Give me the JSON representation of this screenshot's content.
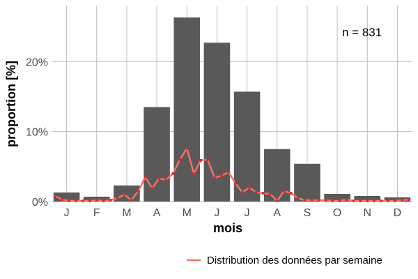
{
  "chart_data": {
    "type": "bar",
    "title": "",
    "xlabel": "mois",
    "ylabel": "proportion [%]",
    "annotation": "n = 831",
    "categories": [
      "J",
      "F",
      "M",
      "A",
      "M",
      "J",
      "J",
      "A",
      "S",
      "O",
      "N",
      "D"
    ],
    "values": [
      1.3,
      0.7,
      2.3,
      13.5,
      26.3,
      22.7,
      15.7,
      7.5,
      5.4,
      1.1,
      0.8,
      0.6
    ],
    "ylim": [
      0,
      28
    ],
    "yticks": [
      0,
      10,
      20
    ],
    "ytick_labels": [
      "0%",
      "10%",
      "20%"
    ],
    "grid": true,
    "bar_color": "#595959",
    "grid_color": "#bebebe",
    "line_series": {
      "name": "Distribution des données par semaine",
      "color": "#f07167",
      "x": [
        1,
        2,
        3,
        4,
        5,
        6,
        7,
        8,
        9,
        10,
        11,
        12,
        13,
        14,
        15,
        16,
        17,
        18,
        19,
        20,
        21,
        22,
        23,
        24,
        25,
        26,
        27,
        28,
        29,
        30,
        31,
        32,
        33,
        34,
        35,
        36,
        37,
        38,
        39,
        40,
        41,
        42,
        43,
        44,
        45,
        46,
        47,
        48,
        49,
        50,
        51,
        52
      ],
      "values": [
        0.8,
        0.3,
        0.1,
        0.1,
        0.1,
        0.1,
        0.2,
        0.1,
        0.2,
        0.5,
        1.0,
        0.2,
        1.5,
        3.5,
        1.9,
        3.3,
        3.1,
        4.0,
        6.0,
        7.6,
        4.0,
        5.9,
        6.0,
        3.4,
        3.7,
        4.2,
        2.6,
        1.3,
        2.0,
        1.3,
        1.2,
        1.1,
        0.1,
        1.5,
        1.2,
        0.5,
        0.2,
        0.2,
        0.2,
        0.2,
        0.1,
        0.1,
        0.3,
        0.1,
        0.1,
        0.1,
        0.1,
        0.1,
        0.1,
        0.1,
        0.2,
        0.3
      ]
    },
    "legend": {
      "position": "bottom-right",
      "entries": [
        "Distribution des données par semaine"
      ]
    }
  }
}
